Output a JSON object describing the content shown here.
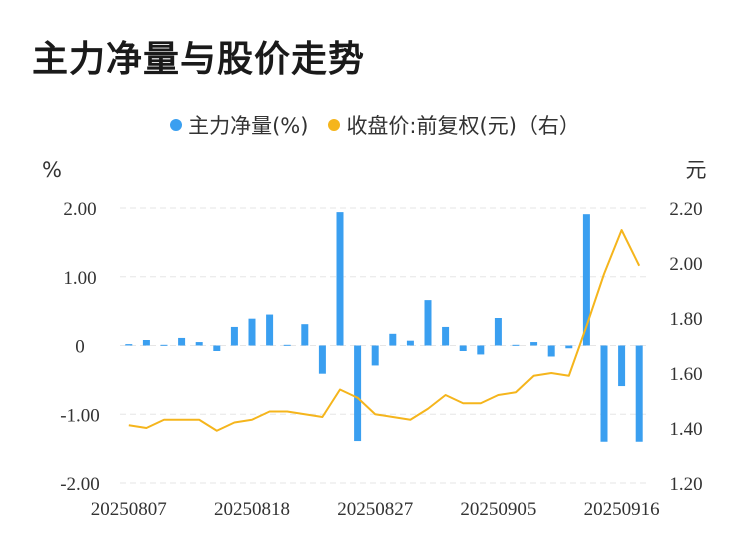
{
  "title": "主力净量与股价走势",
  "colors": {
    "bar": "#3a9ff0",
    "line": "#f5b51c",
    "grid": "#e6e6e6"
  },
  "chart_data": {
    "type": "bar",
    "legend": [
      {
        "name": "主力净量(%)",
        "color": "#3a9ff0"
      },
      {
        "name": "收盘价:前复权(元)（右）",
        "color": "#f5b51c"
      }
    ],
    "y_left_unit": "%",
    "y_right_unit": "元",
    "y_left_ticks": [
      "2.00",
      "1.00",
      "0",
      "-1.00",
      "-2.00"
    ],
    "y_right_ticks": [
      "2.20",
      "2.00",
      "1.80",
      "1.60",
      "1.40",
      "1.20"
    ],
    "ylim_left": [
      -2,
      2
    ],
    "ylim_right": [
      1.2,
      2.2
    ],
    "x_tick_labels": [
      "20250807",
      "20250818",
      "20250827",
      "20250905",
      "20250916"
    ],
    "x_tick_indices": [
      0,
      7,
      14,
      21,
      28
    ],
    "series": [
      {
        "name": "主力净量(%)",
        "type": "bar",
        "values": [
          0.02,
          0.08,
          0.01,
          0.11,
          0.05,
          -0.08,
          0.27,
          0.39,
          0.45,
          0.01,
          0.31,
          -0.41,
          1.94,
          -1.39,
          -0.29,
          0.17,
          0.07,
          0.66,
          0.27,
          -0.08,
          -0.13,
          0.4,
          0.01,
          0.05,
          -0.16,
          -0.04,
          1.91,
          -1.4,
          -0.59,
          -1.4
        ]
      },
      {
        "name": "收盘价:前复权(元)（右）",
        "type": "line",
        "values": [
          1.41,
          1.4,
          1.43,
          1.43,
          1.43,
          1.39,
          1.42,
          1.43,
          1.46,
          1.46,
          1.45,
          1.44,
          1.54,
          1.51,
          1.45,
          1.44,
          1.43,
          1.47,
          1.52,
          1.49,
          1.49,
          1.52,
          1.53,
          1.59,
          1.6,
          1.59,
          1.77,
          1.96,
          2.12,
          1.99
        ]
      }
    ]
  }
}
